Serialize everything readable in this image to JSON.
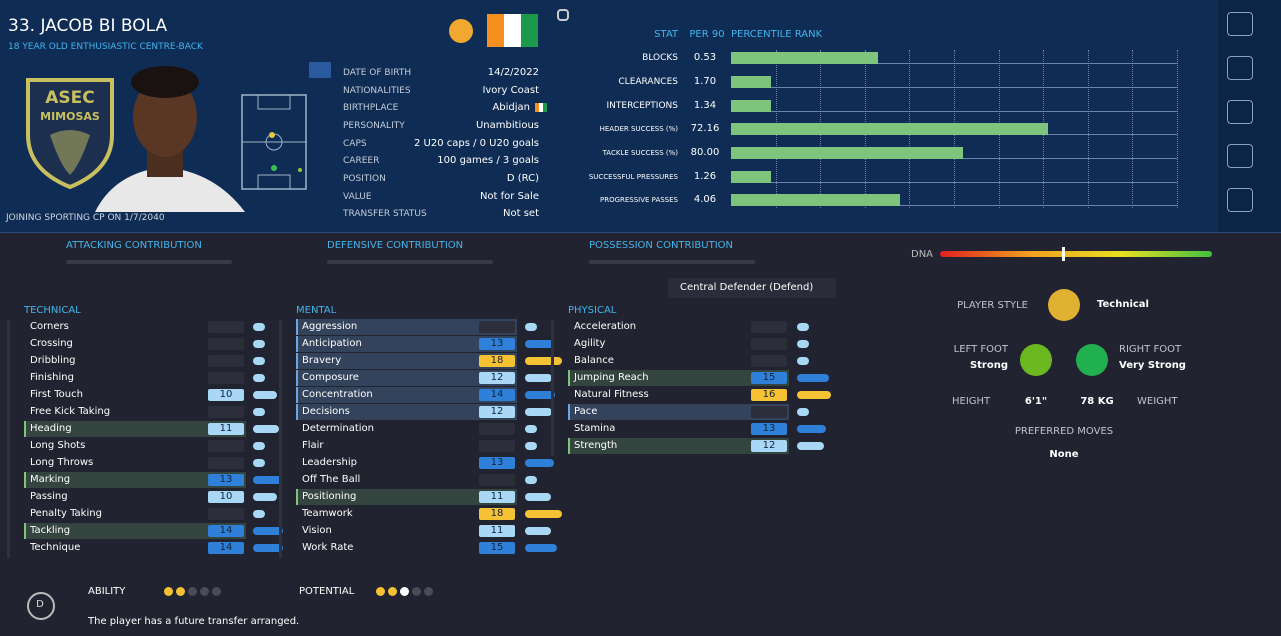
{
  "header": {
    "name": "33. JACOB BI BOLA",
    "subtitle": "18 YEAR OLD ENTHUSIASTIC CENTRE-BACK",
    "joining": "JOINING SPORTING CP ON 1/7/2040",
    "crest": [
      "ASEC",
      "MIMOSAS"
    ]
  },
  "details": [
    {
      "label": "DATE OF BIRTH",
      "value": "14/2/2022"
    },
    {
      "label": "NATIONALITIES",
      "value": "Ivory Coast"
    },
    {
      "label": "BIRTHPLACE",
      "value": "Abidjan"
    },
    {
      "label": "PERSONALITY",
      "value": "Unambitious"
    },
    {
      "label": "CAPS",
      "value": "2 U20 caps / 0 U20 goals"
    },
    {
      "label": "CAREER",
      "value": "100 games / 3 goals"
    },
    {
      "label": "POSITION",
      "value": "D (RC)"
    },
    {
      "label": "VALUE",
      "value": "Not for Sale"
    },
    {
      "label": "TRANSFER STATUS",
      "value": "Not set"
    }
  ],
  "stats": {
    "headers": [
      "STAT",
      "PER 90",
      "PERCENTILE RANK"
    ],
    "rows": [
      {
        "stat": "BLOCKS",
        "per90": "0.53",
        "percentile": 33
      },
      {
        "stat": "CLEARANCES",
        "per90": "1.70",
        "percentile": 9
      },
      {
        "stat": "INTERCEPTIONS",
        "per90": "1.34",
        "percentile": 9
      },
      {
        "stat": "HEADER SUCCESS (%)",
        "per90": "72.16",
        "percentile": 71
      },
      {
        "stat": "TACKLE SUCCESS (%)",
        "per90": "80.00",
        "percentile": 52
      },
      {
        "stat": "SUCCESSFUL PRESSURES",
        "per90": "1.26",
        "percentile": 9
      },
      {
        "stat": "PROGRESSIVE PASSES",
        "per90": "4.06",
        "percentile": 38
      }
    ]
  },
  "contributions": [
    "ATTACKING CONTRIBUTION",
    "DEFENSIVE CONTRIBUTION",
    "POSSESSION CONTRIBUTION"
  ],
  "dna": "DNA",
  "role": "Central Defender (Defend)",
  "attributes": [
    {
      "group": "TECHNICAL",
      "rows": [
        {
          "name": "Corners",
          "value": null
        },
        {
          "name": "Crossing",
          "value": null
        },
        {
          "name": "Dribbling",
          "value": null
        },
        {
          "name": "Finishing",
          "value": null
        },
        {
          "name": "First Touch",
          "value": 10
        },
        {
          "name": "Free Kick Taking",
          "value": null
        },
        {
          "name": "Heading",
          "value": 11,
          "highlight": "green"
        },
        {
          "name": "Long Shots",
          "value": null
        },
        {
          "name": "Long Throws",
          "value": null
        },
        {
          "name": "Marking",
          "value": 13,
          "highlight": "green"
        },
        {
          "name": "Passing",
          "value": 10
        },
        {
          "name": "Penalty Taking",
          "value": null
        },
        {
          "name": "Tackling",
          "value": 14,
          "highlight": "green"
        },
        {
          "name": "Technique",
          "value": 14
        }
      ]
    },
    {
      "group": "MENTAL",
      "rows": [
        {
          "name": "Aggression",
          "value": null,
          "highlight": "blue"
        },
        {
          "name": "Anticipation",
          "value": 13,
          "highlight": "blue"
        },
        {
          "name": "Bravery",
          "value": 18,
          "highlight": "blue"
        },
        {
          "name": "Composure",
          "value": 12,
          "highlight": "blue"
        },
        {
          "name": "Concentration",
          "value": 14,
          "highlight": "blue"
        },
        {
          "name": "Decisions",
          "value": 12,
          "highlight": "blue"
        },
        {
          "name": "Determination",
          "value": null
        },
        {
          "name": "Flair",
          "value": null
        },
        {
          "name": "Leadership",
          "value": 13
        },
        {
          "name": "Off The Ball",
          "value": null
        },
        {
          "name": "Positioning",
          "value": 11,
          "highlight": "green"
        },
        {
          "name": "Teamwork",
          "value": 18
        },
        {
          "name": "Vision",
          "value": 11
        },
        {
          "name": "Work Rate",
          "value": 15
        }
      ]
    },
    {
      "group": "PHYSICAL",
      "rows": [
        {
          "name": "Acceleration",
          "value": null
        },
        {
          "name": "Agility",
          "value": null
        },
        {
          "name": "Balance",
          "value": null
        },
        {
          "name": "Jumping Reach",
          "value": 15,
          "highlight": "green"
        },
        {
          "name": "Natural Fitness",
          "value": 16
        },
        {
          "name": "Pace",
          "value": null,
          "highlight": "blue"
        },
        {
          "name": "Stamina",
          "value": 13
        },
        {
          "name": "Strength",
          "value": 12,
          "highlight": "green"
        }
      ]
    }
  ],
  "profile": {
    "style_label": "PLAYER STYLE",
    "style": "Technical",
    "left_foot_label": "LEFT FOOT",
    "left_foot": "Strong",
    "right_foot_label": "RIGHT FOOT",
    "right_foot": "Very Strong",
    "height_label": "HEIGHT",
    "height": "6'1\"",
    "weight": "78 KG",
    "weight_label": "WEIGHT",
    "moves_label": "PREFERRED MOVES",
    "moves": "None"
  },
  "footer": {
    "badge": "D",
    "ability_label": "ABILITY",
    "ability": 2,
    "potential_label": "POTENTIAL",
    "potential_min": 2,
    "potential_max": 3,
    "note": "The player has a future transfer arranged."
  }
}
